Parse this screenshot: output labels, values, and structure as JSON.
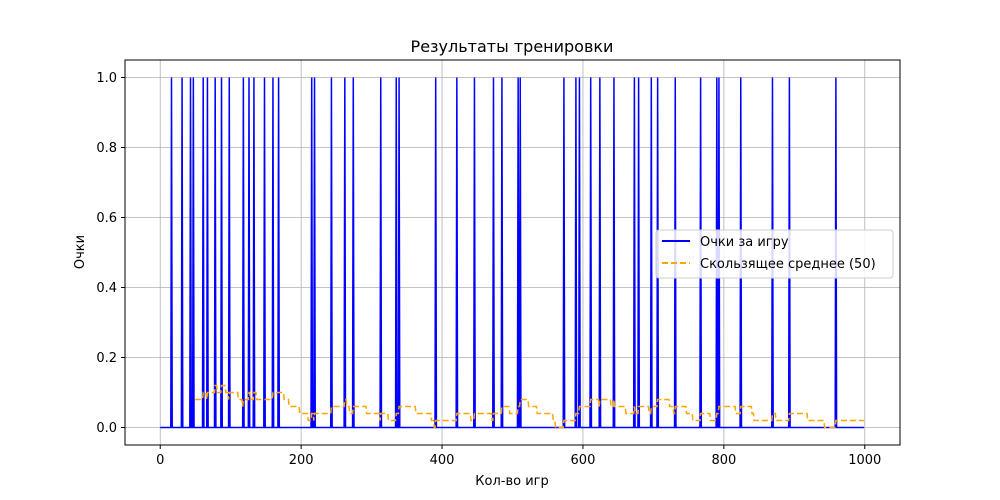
{
  "chart_data": {
    "type": "line",
    "title": "Результаты тренировки",
    "xlabel": "Кол-во игр",
    "ylabel": "Очки",
    "xlim": [
      -50,
      1050
    ],
    "ylim": [
      -0.05,
      1.05
    ],
    "xticks": [
      0,
      200,
      400,
      600,
      800,
      1000
    ],
    "yticks": [
      0.0,
      0.2,
      0.4,
      0.6,
      0.8,
      1.0
    ],
    "xtick_labels": [
      "0",
      "200",
      "400",
      "600",
      "800",
      "1000"
    ],
    "ytick_labels": [
      "0.0",
      "0.2",
      "0.4",
      "0.6",
      "0.8",
      "1.0"
    ],
    "grid": true,
    "legend_position": "center-right",
    "series": [
      {
        "name": "Очки за игру",
        "color": "#0000ff",
        "style": "solid",
        "x_range": [
          0,
          999
        ],
        "win_games": [
          16,
          31,
          43,
          47,
          61,
          67,
          78,
          87,
          98,
          118,
          126,
          133,
          148,
          160,
          168,
          215,
          219,
          243,
          262,
          274,
          313,
          335,
          339,
          391,
          421,
          446,
          473,
          485,
          508,
          511,
          573,
          590,
          595,
          611,
          624,
          644,
          673,
          679,
          697,
          706,
          731,
          767,
          790,
          793,
          824,
          869,
          893,
          959
        ]
      },
      {
        "name": "Скользящее среднее (50)",
        "color": "#ffa500",
        "style": "dashed",
        "window": 50
      }
    ]
  }
}
